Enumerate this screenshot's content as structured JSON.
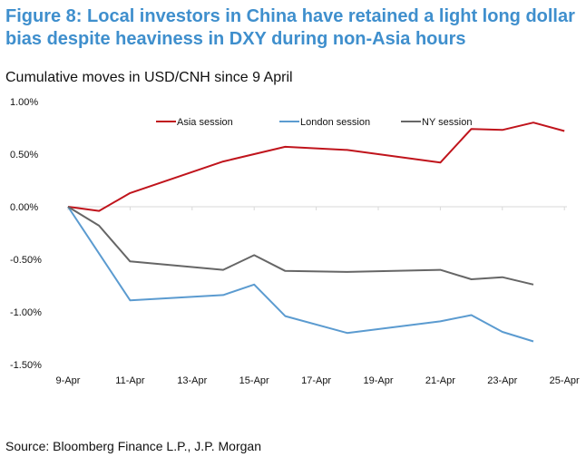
{
  "title": "Figure 8: Local investors in China have retained a light long dollar bias despite heaviness in DXY during non-Asia hours",
  "subtitle": "Cumulative moves in USD/CNH since 9 April",
  "source": "Source: Bloomberg Finance L.P., J.P. Morgan",
  "chart_data": {
    "type": "line",
    "title": "Figure 8: Local investors in China have retained a light long dollar bias despite heaviness in DXY during non-Asia hours",
    "subtitle": "Cumulative moves in USD/CNH since 9 April",
    "xlabel": "",
    "ylabel": "",
    "x_tick_labels": [
      "9-Apr",
      "11-Apr",
      "13-Apr",
      "15-Apr",
      "17-Apr",
      "19-Apr",
      "21-Apr",
      "23-Apr",
      "25-Apr"
    ],
    "y_tick_labels": [
      "1.00%",
      "0.50%",
      "0.00%",
      "-0.50%",
      "-1.00%",
      "-1.50%"
    ],
    "ylim": [
      -1.5,
      1.0
    ],
    "xlim": [
      "9-Apr",
      "25-Apr"
    ],
    "grid": false,
    "legend": "top",
    "series": [
      {
        "name": "Asia session",
        "color": "#c0141c",
        "x": [
          "9-Apr",
          "10-Apr",
          "11-Apr",
          "14-Apr",
          "16-Apr",
          "18-Apr",
          "21-Apr",
          "22-Apr",
          "23-Apr",
          "24-Apr",
          "25-Apr"
        ],
        "values": [
          0.0,
          -0.04,
          0.13,
          0.43,
          0.57,
          0.54,
          0.42,
          0.74,
          0.73,
          0.8,
          0.72
        ]
      },
      {
        "name": "London session",
        "color": "#5b9bd0",
        "x": [
          "9-Apr",
          "11-Apr",
          "14-Apr",
          "15-Apr",
          "16-Apr",
          "18-Apr",
          "21-Apr",
          "22-Apr",
          "23-Apr",
          "24-Apr"
        ],
        "values": [
          0.0,
          -0.89,
          -0.84,
          -0.74,
          -1.04,
          -1.2,
          -1.09,
          -1.03,
          -1.19,
          -1.28
        ]
      },
      {
        "name": "NY session",
        "color": "#666666",
        "x": [
          "9-Apr",
          "10-Apr",
          "11-Apr",
          "14-Apr",
          "15-Apr",
          "16-Apr",
          "18-Apr",
          "21-Apr",
          "22-Apr",
          "23-Apr",
          "24-Apr"
        ],
        "values": [
          0.0,
          -0.18,
          -0.52,
          -0.6,
          -0.46,
          -0.61,
          -0.62,
          -0.6,
          -0.69,
          -0.67,
          -0.74
        ]
      }
    ]
  }
}
